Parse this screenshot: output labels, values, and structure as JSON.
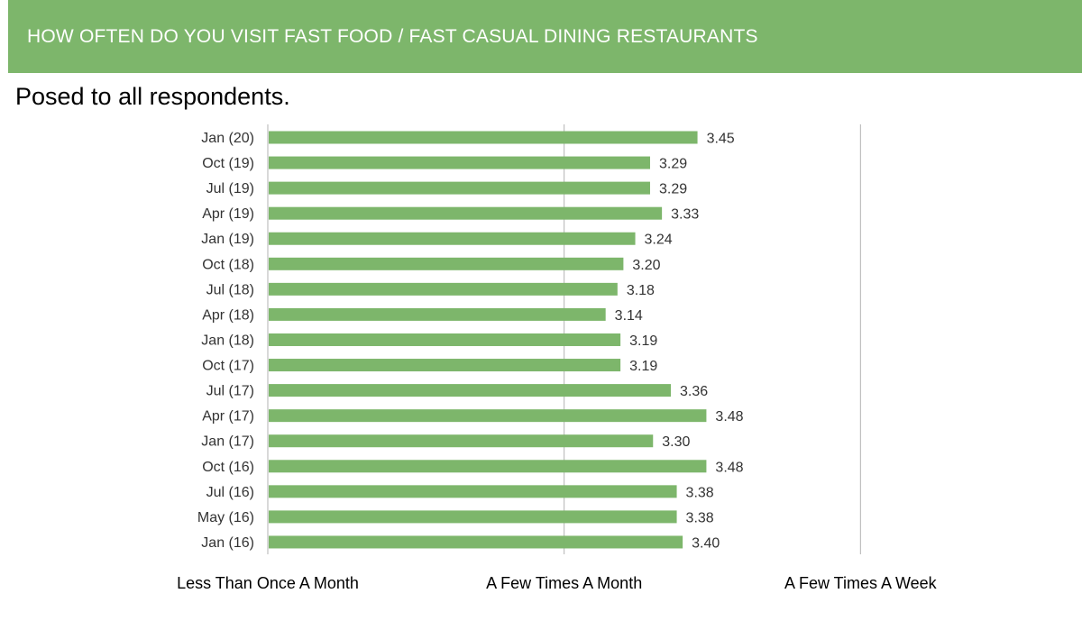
{
  "header": {
    "title": "HOW OFTEN DO YOU VISIT FAST FOOD / FAST CASUAL DINING RESTAURANTS",
    "subtitle": "Posed to all respondents."
  },
  "colors": {
    "banner": "#7db66b",
    "bar": "#7db66b",
    "grid": "#b3b3b3"
  },
  "chart_data": {
    "type": "bar",
    "orientation": "horizontal",
    "categories": [
      "Jan (20)",
      "Oct (19)",
      "Jul (19)",
      "Apr (19)",
      "Jan (19)",
      "Oct (18)",
      "Jul (18)",
      "Apr (18)",
      "Jan (18)",
      "Oct (17)",
      "Jul (17)",
      "Apr (17)",
      "Jan (17)",
      "Oct (16)",
      "Jul (16)",
      "May (16)",
      "Jan (16)"
    ],
    "values": [
      3.45,
      3.29,
      3.29,
      3.33,
      3.24,
      3.2,
      3.18,
      3.14,
      3.19,
      3.19,
      3.36,
      3.48,
      3.3,
      3.48,
      3.38,
      3.38,
      3.4
    ],
    "value_labels": [
      "3.45",
      "3.29",
      "3.29",
      "3.33",
      "3.24",
      "3.20",
      "3.18",
      "3.14",
      "3.19",
      "3.19",
      "3.36",
      "3.48",
      "3.30",
      "3.48",
      "3.38",
      "3.38",
      "3.40"
    ],
    "xlim": [
      2,
      5
    ],
    "x_ticks": [
      2,
      3,
      4,
      5
    ],
    "x_tick_labels": [
      "Less Than Once A Month",
      "A Few Times A Month",
      "A Few Times A Week"
    ],
    "grid": true,
    "legend": "none"
  }
}
